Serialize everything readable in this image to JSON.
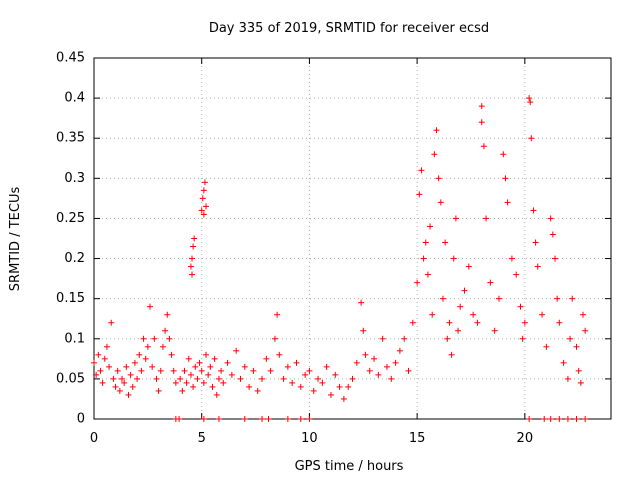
{
  "chart_data": {
    "type": "scatter",
    "title": "Day 335 of 2019, SRMTID for receiver ecsd",
    "xlabel": "GPS time / hours",
    "ylabel": "SRMTID / TECUs",
    "xlim": [
      0,
      24
    ],
    "ylim": [
      0,
      0.45
    ],
    "x_ticks": [
      0,
      5,
      10,
      15,
      20
    ],
    "x_tick_labels": [
      "0",
      "5",
      "10",
      "15",
      "20"
    ],
    "y_ticks": [
      0,
      0.05,
      0.1,
      0.15,
      0.2,
      0.25,
      0.3,
      0.35,
      0.4,
      0.45
    ],
    "y_tick_labels": [
      "0",
      "0.05",
      "0.1",
      "0.15",
      "0.2",
      "0.25",
      "0.3",
      "0.35",
      "0.4",
      "0.45"
    ],
    "grid": true,
    "marker": "plus",
    "color": "#ff0000",
    "series": [
      {
        "name": "SRMTID",
        "points": [
          [
            0.0,
            0.07
          ],
          [
            0.1,
            0.055
          ],
          [
            0.2,
            0.08
          ],
          [
            0.3,
            0.06
          ],
          [
            0.4,
            0.045
          ],
          [
            0.5,
            0.075
          ],
          [
            0.6,
            0.09
          ],
          [
            0.7,
            0.065
          ],
          [
            0.8,
            0.12
          ],
          [
            0.9,
            0.05
          ],
          [
            1.0,
            0.04
          ],
          [
            1.1,
            0.06
          ],
          [
            1.2,
            0.035
          ],
          [
            1.3,
            0.05
          ],
          [
            1.4,
            0.045
          ],
          [
            1.5,
            0.065
          ],
          [
            1.6,
            0.03
          ],
          [
            1.7,
            0.055
          ],
          [
            1.8,
            0.04
          ],
          [
            1.9,
            0.07
          ],
          [
            2.0,
            0.05
          ],
          [
            2.1,
            0.08
          ],
          [
            2.2,
            0.06
          ],
          [
            2.3,
            0.1
          ],
          [
            2.4,
            0.075
          ],
          [
            2.5,
            0.09
          ],
          [
            2.6,
            0.14
          ],
          [
            2.7,
            0.065
          ],
          [
            2.8,
            0.1
          ],
          [
            2.9,
            0.05
          ],
          [
            3.0,
            0.035
          ],
          [
            3.1,
            0.06
          ],
          [
            3.2,
            0.09
          ],
          [
            3.3,
            0.11
          ],
          [
            3.4,
            0.13
          ],
          [
            3.5,
            0.1
          ],
          [
            3.6,
            0.08
          ],
          [
            3.7,
            0.06
          ],
          [
            3.8,
            0.045
          ],
          [
            4.0,
            0.05
          ],
          [
            4.1,
            0.035
          ],
          [
            4.2,
            0.06
          ],
          [
            4.3,
            0.045
          ],
          [
            4.4,
            0.075
          ],
          [
            4.5,
            0.055
          ],
          [
            4.6,
            0.04
          ],
          [
            4.7,
            0.065
          ],
          [
            4.8,
            0.05
          ],
          [
            4.9,
            0.07
          ],
          [
            4.5,
            0.19
          ],
          [
            4.55,
            0.2
          ],
          [
            4.6,
            0.215
          ],
          [
            4.65,
            0.225
          ],
          [
            4.55,
            0.18
          ],
          [
            5.0,
            0.06
          ],
          [
            5.1,
            0.045
          ],
          [
            5.2,
            0.08
          ],
          [
            5.3,
            0.055
          ],
          [
            5.4,
            0.065
          ],
          [
            5.5,
            0.04
          ],
          [
            5.6,
            0.075
          ],
          [
            5.7,
            0.03
          ],
          [
            5.8,
            0.05
          ],
          [
            5.9,
            0.06
          ],
          [
            5.0,
            0.26
          ],
          [
            5.05,
            0.275
          ],
          [
            5.1,
            0.285
          ],
          [
            5.15,
            0.295
          ],
          [
            5.2,
            0.265
          ],
          [
            5.1,
            0.255
          ],
          [
            6.0,
            0.045
          ],
          [
            6.2,
            0.07
          ],
          [
            6.4,
            0.055
          ],
          [
            6.6,
            0.085
          ],
          [
            6.8,
            0.05
          ],
          [
            7.0,
            0.065
          ],
          [
            7.2,
            0.04
          ],
          [
            7.4,
            0.06
          ],
          [
            7.6,
            0.035
          ],
          [
            7.8,
            0.05
          ],
          [
            8.0,
            0.075
          ],
          [
            8.2,
            0.06
          ],
          [
            8.4,
            0.1
          ],
          [
            8.5,
            0.13
          ],
          [
            8.6,
            0.08
          ],
          [
            8.8,
            0.05
          ],
          [
            9.0,
            0.065
          ],
          [
            9.2,
            0.045
          ],
          [
            9.4,
            0.07
          ],
          [
            9.6,
            0.04
          ],
          [
            9.8,
            0.055
          ],
          [
            10.0,
            0.06
          ],
          [
            10.2,
            0.035
          ],
          [
            10.4,
            0.05
          ],
          [
            10.6,
            0.045
          ],
          [
            10.8,
            0.065
          ],
          [
            11.0,
            0.03
          ],
          [
            11.2,
            0.055
          ],
          [
            11.4,
            0.04
          ],
          [
            11.6,
            0.025
          ],
          [
            11.8,
            0.04
          ],
          [
            12.0,
            0.05
          ],
          [
            12.2,
            0.07
          ],
          [
            12.4,
            0.145
          ],
          [
            12.5,
            0.11
          ],
          [
            12.6,
            0.08
          ],
          [
            12.8,
            0.06
          ],
          [
            13.0,
            0.075
          ],
          [
            13.2,
            0.055
          ],
          [
            13.4,
            0.1
          ],
          [
            13.6,
            0.065
          ],
          [
            13.8,
            0.05
          ],
          [
            14.0,
            0.07
          ],
          [
            14.2,
            0.085
          ],
          [
            14.4,
            0.1
          ],
          [
            14.6,
            0.06
          ],
          [
            14.8,
            0.12
          ],
          [
            15.0,
            0.17
          ],
          [
            15.1,
            0.28
          ],
          [
            15.2,
            0.31
          ],
          [
            15.3,
            0.2
          ],
          [
            15.4,
            0.22
          ],
          [
            15.5,
            0.18
          ],
          [
            15.6,
            0.24
          ],
          [
            15.7,
            0.13
          ],
          [
            15.8,
            0.33
          ],
          [
            15.9,
            0.36
          ],
          [
            16.0,
            0.3
          ],
          [
            16.1,
            0.27
          ],
          [
            16.2,
            0.15
          ],
          [
            16.3,
            0.22
          ],
          [
            16.4,
            0.1
          ],
          [
            16.5,
            0.12
          ],
          [
            16.6,
            0.08
          ],
          [
            16.7,
            0.2
          ],
          [
            16.8,
            0.25
          ],
          [
            16.9,
            0.11
          ],
          [
            17.0,
            0.14
          ],
          [
            17.2,
            0.16
          ],
          [
            17.4,
            0.19
          ],
          [
            17.6,
            0.13
          ],
          [
            17.8,
            0.12
          ],
          [
            18.0,
            0.39
          ],
          [
            18.0,
            0.37
          ],
          [
            18.1,
            0.34
          ],
          [
            18.2,
            0.25
          ],
          [
            18.4,
            0.17
          ],
          [
            18.6,
            0.11
          ],
          [
            18.8,
            0.15
          ],
          [
            19.0,
            0.33
          ],
          [
            19.1,
            0.3
          ],
          [
            19.2,
            0.27
          ],
          [
            19.4,
            0.2
          ],
          [
            19.6,
            0.18
          ],
          [
            19.8,
            0.14
          ],
          [
            19.9,
            0.1
          ],
          [
            20.0,
            0.12
          ],
          [
            20.2,
            0.4
          ],
          [
            20.25,
            0.395
          ],
          [
            20.3,
            0.35
          ],
          [
            20.4,
            0.26
          ],
          [
            20.5,
            0.22
          ],
          [
            20.6,
            0.19
          ],
          [
            20.8,
            0.13
          ],
          [
            21.0,
            0.09
          ],
          [
            21.2,
            0.25
          ],
          [
            21.3,
            0.23
          ],
          [
            21.4,
            0.2
          ],
          [
            21.5,
            0.15
          ],
          [
            21.6,
            0.12
          ],
          [
            21.8,
            0.07
          ],
          [
            22.0,
            0.05
          ],
          [
            22.1,
            0.1
          ],
          [
            22.2,
            0.15
          ],
          [
            22.4,
            0.09
          ],
          [
            22.5,
            0.06
          ],
          [
            22.6,
            0.045
          ],
          [
            22.7,
            0.13
          ],
          [
            22.8,
            0.11
          ]
        ]
      },
      {
        "name": "zero-line markers",
        "points": [
          [
            3.8,
            0
          ],
          [
            3.95,
            0
          ],
          [
            5.1,
            0
          ],
          [
            5.8,
            0
          ],
          [
            7.0,
            0
          ],
          [
            7.8,
            0
          ],
          [
            8.1,
            0
          ],
          [
            9.0,
            0
          ],
          [
            9.6,
            0
          ],
          [
            10.0,
            0
          ],
          [
            20.2,
            0
          ],
          [
            20.9,
            0
          ],
          [
            21.2,
            0
          ],
          [
            21.6,
            0
          ],
          [
            22.0,
            0
          ],
          [
            22.4,
            0
          ],
          [
            22.8,
            0
          ]
        ]
      }
    ]
  }
}
